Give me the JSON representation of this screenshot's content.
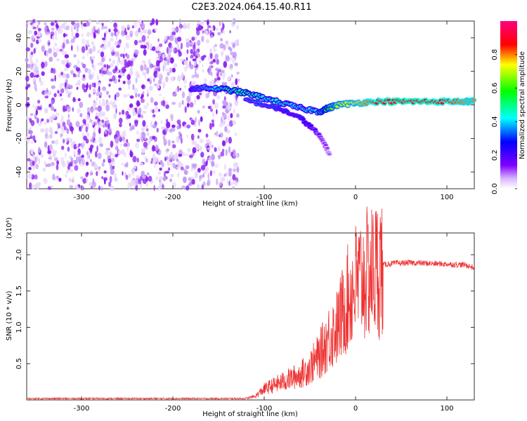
{
  "title": "C2E3.2024.064.15.40.R11",
  "chart_data": [
    {
      "type": "heatmap",
      "xlabel": "Height of straight line (km)",
      "ylabel": "Frequency (Hz)",
      "xlim": [
        -360,
        130
      ],
      "ylim": [
        -50,
        50
      ],
      "xticks": [
        -300,
        -200,
        -100,
        0,
        100
      ],
      "yticks": [
        -40,
        -20,
        0,
        20,
        40
      ],
      "colorbar": {
        "label": "Normalized spectral amplitude",
        "range": [
          0.0,
          1.0
        ],
        "ticks": [
          0.0,
          0.2,
          0.4,
          0.6,
          0.8
        ],
        "tick_labels": [
          "0.0",
          "0.2",
          "0.4",
          "0.6",
          "0.8"
        ],
        "colormap": [
          "#ffffff",
          "#7f00ff",
          "#0000ff",
          "#00ffff",
          "#00ff00",
          "#ffff00",
          "#ff0000",
          "#ff0080"
        ]
      },
      "noise_region": {
        "x_range": [
          -360,
          -128
        ],
        "y_range": [
          -50,
          50
        ],
        "amplitude": 0.05
      },
      "signal_track": {
        "x": [
          -180,
          -160,
          -140,
          -120,
          -100,
          -80,
          -60,
          -40,
          -30,
          -20,
          0,
          20,
          40,
          60,
          80,
          100,
          120,
          130
        ],
        "y": [
          10,
          10,
          9,
          7,
          4,
          1,
          -2,
          -4,
          -2,
          0,
          1,
          2,
          2,
          2,
          2,
          2,
          2,
          2
        ],
        "amplitude": [
          0.3,
          0.4,
          0.5,
          0.5,
          0.45,
          0.45,
          0.4,
          0.45,
          0.6,
          0.7,
          0.75,
          0.85,
          0.9,
          0.9,
          0.9,
          0.85,
          0.8,
          0.8
        ]
      },
      "secondary_track": {
        "x": [
          -120,
          -100,
          -80,
          -60,
          -45,
          -35,
          -28
        ],
        "y": [
          3,
          0,
          -3,
          -8,
          -15,
          -22,
          -30
        ],
        "amplitude": [
          0.35,
          0.35,
          0.3,
          0.3,
          0.25,
          0.15,
          0.1
        ]
      }
    },
    {
      "type": "line",
      "xlabel": "Height of straight line (km)",
      "ylabel": "SNR (10 * v/v)",
      "y_multiplier": "(x10⁴)",
      "xlim": [
        -360,
        130
      ],
      "ylim": [
        0,
        2.3
      ],
      "xticks": [
        -300,
        -200,
        -100,
        0,
        100
      ],
      "yticks": [
        0.5,
        1.0,
        1.5,
        2.0
      ],
      "ytick_labels": [
        "0.5",
        "1.0",
        "1.5",
        "2.0"
      ],
      "color": "#ee3333",
      "series": [
        {
          "x": [
            -360,
            -300,
            -200,
            -120,
            -110,
            -100,
            -90,
            -80,
            -70,
            -60,
            -50,
            -40,
            -30,
            -20,
            -10,
            0,
            5,
            10,
            20,
            25,
            30,
            40,
            60,
            80,
            100,
            120,
            130
          ],
          "y": [
            0.02,
            0.02,
            0.02,
            0.02,
            0.05,
            0.15,
            0.2,
            0.25,
            0.3,
            0.35,
            0.45,
            0.6,
            0.85,
            1.0,
            1.35,
            1.6,
            1.65,
            1.7,
            1.78,
            1.82,
            1.86,
            1.88,
            1.89,
            1.88,
            1.87,
            1.86,
            1.82
          ]
        }
      ],
      "annotations": [
        {
          "x": 10,
          "y": 2.2,
          "text": ""
        }
      ]
    }
  ]
}
